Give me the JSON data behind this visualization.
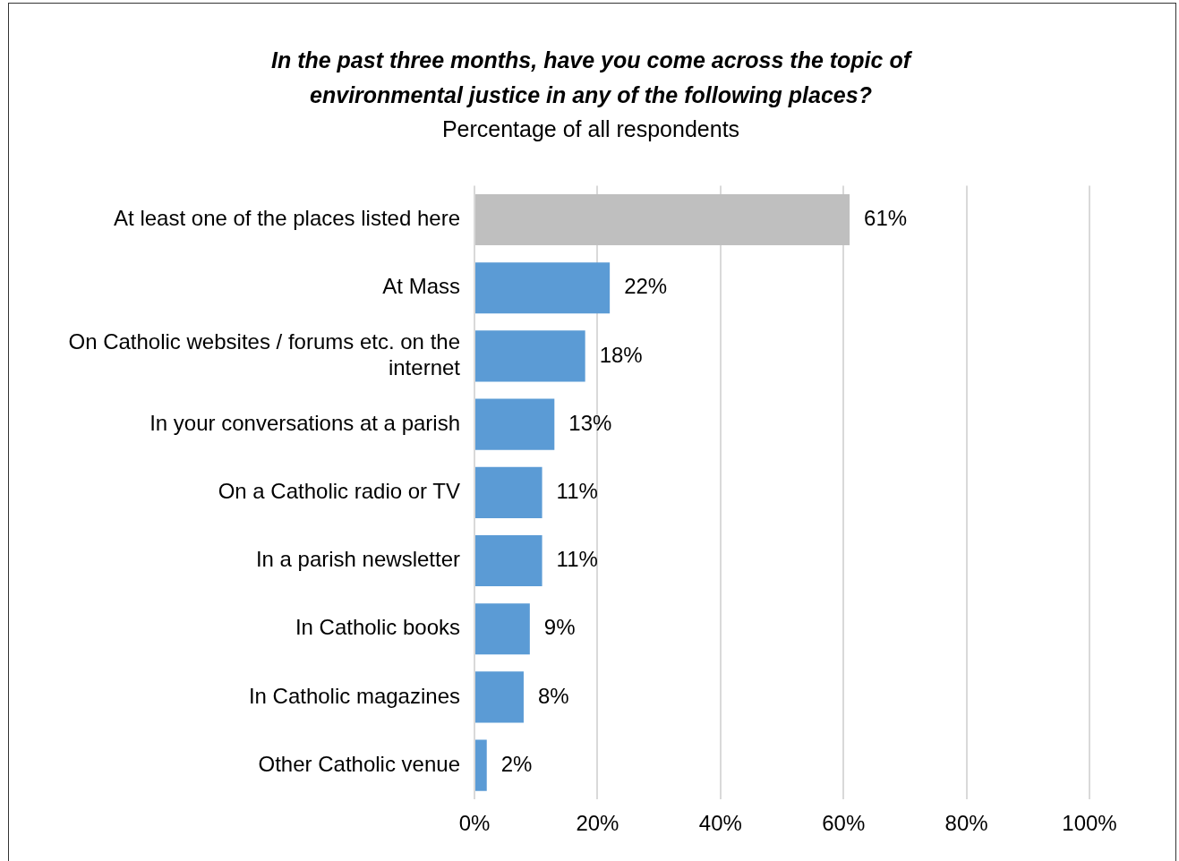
{
  "chart_data": {
    "type": "bar",
    "orientation": "horizontal",
    "title": "In the past three months, have you come across the topic of environmental justice in any of the following places?",
    "subtitle": "Percentage of all respondents",
    "categories": [
      "At least one of the places listed here",
      "At Mass",
      "On Catholic websites / forums etc. on the internet",
      "In your conversations at a parish",
      "On a Catholic radio or TV",
      "In a parish newsletter",
      "In Catholic books",
      "In Catholic magazines",
      "Other Catholic venue"
    ],
    "values": [
      61,
      22,
      18,
      13,
      11,
      11,
      9,
      8,
      2
    ],
    "colors": [
      "#bfbfbf",
      "#5b9bd5",
      "#5b9bd5",
      "#5b9bd5",
      "#5b9bd5",
      "#5b9bd5",
      "#5b9bd5",
      "#5b9bd5",
      "#5b9bd5"
    ],
    "value_labels": [
      "61%",
      "22%",
      "18%",
      "13%",
      "11%",
      "11%",
      "9%",
      "8%",
      "2%"
    ],
    "xlim": [
      0,
      100
    ],
    "xticks": [
      {
        "value": 0,
        "label": "0%"
      },
      {
        "value": 20,
        "label": "20%"
      },
      {
        "value": 40,
        "label": "40%"
      },
      {
        "value": 60,
        "label": "60%"
      },
      {
        "value": 80,
        "label": "80%"
      },
      {
        "value": 100,
        "label": "100%"
      }
    ],
    "grid": "x",
    "legend": false
  }
}
